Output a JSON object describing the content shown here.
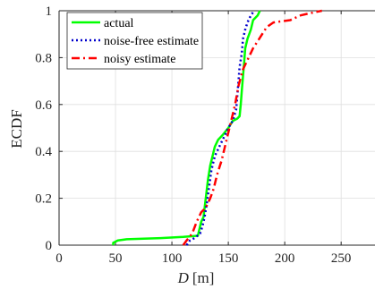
{
  "chart_data": {
    "type": "line",
    "xlabel_symbol": "D",
    "xlabel_unit": "[m]",
    "ylabel": "ECDF",
    "xlim": [
      0,
      280
    ],
    "ylim": [
      0,
      1
    ],
    "xticks": [
      0,
      50,
      100,
      150,
      200,
      250
    ],
    "yticks": [
      0,
      0.2,
      0.4,
      0.6,
      0.8,
      1
    ],
    "xtick_labels": [
      "0",
      "50",
      "100",
      "150",
      "200",
      "250"
    ],
    "ytick_labels": [
      "0",
      "0.2",
      "0.4",
      "0.6",
      "0.8",
      "1"
    ],
    "grid": true,
    "legend_position": "top-left",
    "series": [
      {
        "name": "actual",
        "color": "#00ff00",
        "style": "solid",
        "points": [
          [
            48,
            0.0
          ],
          [
            48,
            0.01
          ],
          [
            52,
            0.02
          ],
          [
            60,
            0.025
          ],
          [
            90,
            0.03
          ],
          [
            110,
            0.035
          ],
          [
            123,
            0.04
          ],
          [
            124,
            0.06
          ],
          [
            126,
            0.1
          ],
          [
            128,
            0.12
          ],
          [
            130,
            0.2
          ],
          [
            132,
            0.28
          ],
          [
            134,
            0.34
          ],
          [
            136,
            0.38
          ],
          [
            138,
            0.42
          ],
          [
            141,
            0.45
          ],
          [
            145,
            0.47
          ],
          [
            150,
            0.5
          ],
          [
            154,
            0.53
          ],
          [
            158,
            0.54
          ],
          [
            160,
            0.55
          ],
          [
            161,
            0.6
          ],
          [
            162,
            0.66
          ],
          [
            163,
            0.72
          ],
          [
            164,
            0.78
          ],
          [
            165,
            0.84
          ],
          [
            167,
            0.88
          ],
          [
            170,
            0.92
          ],
          [
            172,
            0.96
          ],
          [
            176,
            0.98
          ],
          [
            178,
            1.0
          ]
        ]
      },
      {
        "name": "noise-free estimate",
        "color": "#0000cc",
        "style": "dotted",
        "points": [
          [
            113,
            0.0
          ],
          [
            116,
            0.02
          ],
          [
            120,
            0.03
          ],
          [
            125,
            0.05
          ],
          [
            127,
            0.08
          ],
          [
            129,
            0.12
          ],
          [
            131,
            0.18
          ],
          [
            133,
            0.25
          ],
          [
            135,
            0.32
          ],
          [
            138,
            0.38
          ],
          [
            142,
            0.42
          ],
          [
            146,
            0.46
          ],
          [
            150,
            0.5
          ],
          [
            154,
            0.53
          ],
          [
            157,
            0.58
          ],
          [
            158,
            0.64
          ],
          [
            159,
            0.7
          ],
          [
            160,
            0.76
          ],
          [
            162,
            0.82
          ],
          [
            163,
            0.88
          ],
          [
            165,
            0.92
          ],
          [
            167,
            0.95
          ],
          [
            170,
            0.98
          ],
          [
            173,
            1.0
          ]
        ]
      },
      {
        "name": "noisy estimate",
        "color": "#ff0000",
        "style": "dashdot",
        "points": [
          [
            110,
            0.0
          ],
          [
            113,
            0.02
          ],
          [
            118,
            0.05
          ],
          [
            122,
            0.1
          ],
          [
            126,
            0.14
          ],
          [
            130,
            0.16
          ],
          [
            134,
            0.2
          ],
          [
            137,
            0.24
          ],
          [
            140,
            0.3
          ],
          [
            144,
            0.36
          ],
          [
            147,
            0.42
          ],
          [
            150,
            0.48
          ],
          [
            153,
            0.54
          ],
          [
            156,
            0.6
          ],
          [
            159,
            0.68
          ],
          [
            163,
            0.75
          ],
          [
            168,
            0.8
          ],
          [
            172,
            0.84
          ],
          [
            176,
            0.87
          ],
          [
            180,
            0.9
          ],
          [
            184,
            0.93
          ],
          [
            190,
            0.95
          ],
          [
            205,
            0.96
          ],
          [
            214,
            0.98
          ],
          [
            223,
            0.99
          ],
          [
            233,
            1.0
          ]
        ]
      }
    ]
  }
}
